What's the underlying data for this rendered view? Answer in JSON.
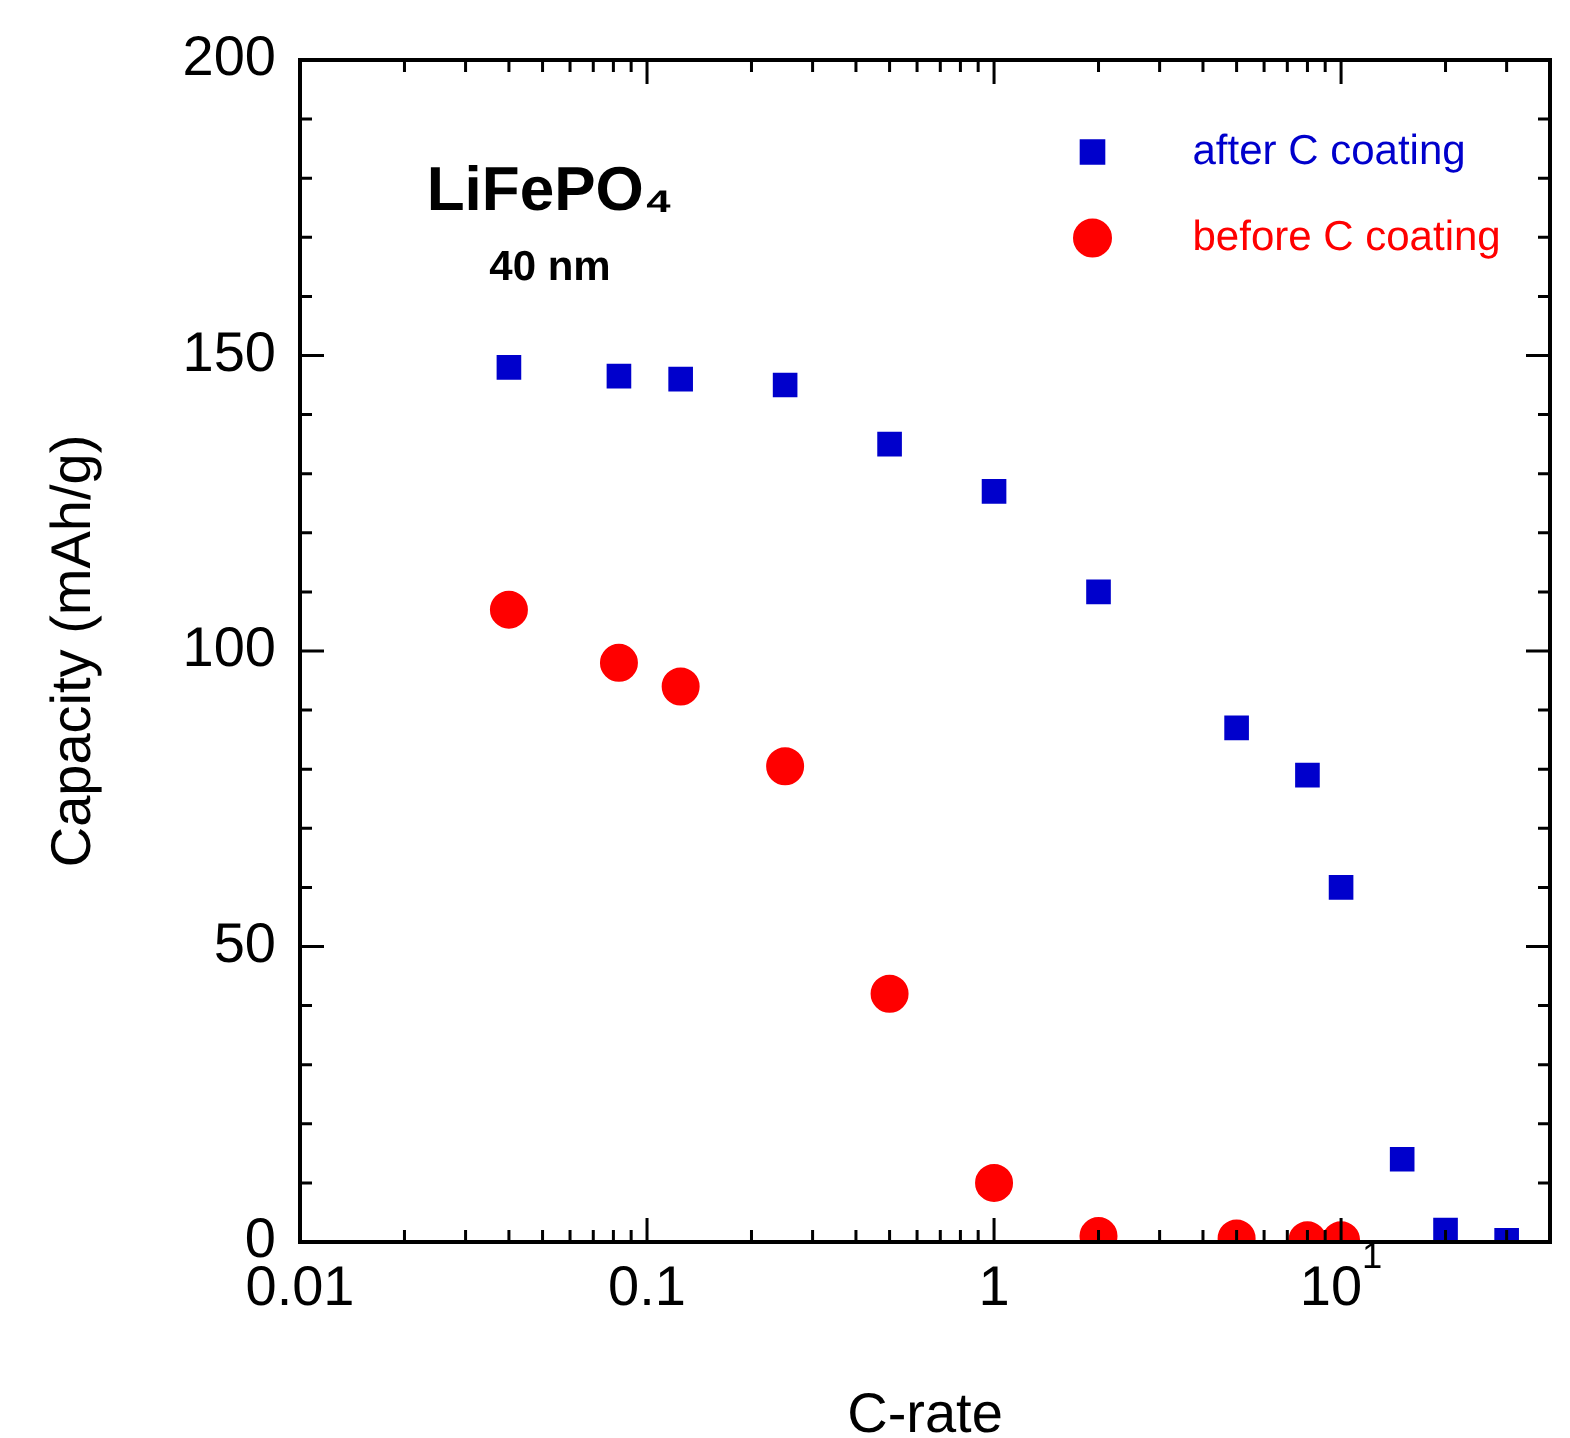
{
  "chart_data": {
    "type": "scatter",
    "title": "LiFePO₄",
    "annotations": [
      "40 nm"
    ],
    "xlabel": "C-rate",
    "ylabel": "Capacity (mAh/g)",
    "log": "x",
    "xlim": [
      0.01,
      40
    ],
    "xticks": [
      0.01,
      {
        "value": 0.02,
        "label": null
      },
      {
        "value": 0.03,
        "label": null
      },
      {
        "value": 0.04,
        "label": null
      },
      {
        "value": 0.05,
        "label": null
      },
      {
        "value": 0.06,
        "label": null
      },
      {
        "value": 0.07,
        "label": null
      },
      {
        "value": 0.08,
        "label": null
      },
      {
        "value": 0.09,
        "label": null
      },
      0.1,
      {
        "value": 0.2,
        "label": null
      },
      {
        "value": 0.3,
        "label": null
      },
      {
        "value": 0.4,
        "label": null
      },
      {
        "value": 0.5,
        "label": null
      },
      {
        "value": 0.6,
        "label": null
      },
      {
        "value": 0.7,
        "label": null
      },
      {
        "value": 0.8,
        "label": null
      },
      {
        "value": 0.9,
        "label": null
      },
      1,
      {
        "value": 2,
        "label": null
      },
      {
        "value": 3,
        "label": null
      },
      {
        "value": 4,
        "label": null
      },
      {
        "value": 5,
        "label": null
      },
      {
        "value": 6,
        "label": null
      },
      {
        "value": 7,
        "label": null
      },
      {
        "value": 8,
        "label": null
      },
      {
        "value": 9,
        "label": null
      },
      {
        "value": 10,
        "label": "10$^{1}$"
      },
      {
        "value": 20,
        "label": null
      },
      {
        "value": 30,
        "label": null
      },
      {
        "value": 40,
        "label": null
      }
    ],
    "ylim": [
      0,
      200
    ],
    "yticks": [
      0,
      {
        "value": 10,
        "label": null
      },
      {
        "value": 20,
        "label": null
      },
      {
        "value": 30,
        "label": null
      },
      {
        "value": 40,
        "label": null
      },
      50,
      {
        "value": 60,
        "label": null
      },
      {
        "value": 70,
        "label": null
      },
      {
        "value": 80,
        "label": null
      },
      {
        "value": 90,
        "label": null
      },
      100,
      {
        "value": 110,
        "label": null
      },
      {
        "value": 120,
        "label": null
      },
      {
        "value": 130,
        "label": null
      },
      {
        "value": 140,
        "label": null
      },
      150,
      {
        "value": 160,
        "label": null
      },
      {
        "value": 170,
        "label": null
      },
      {
        "value": 180,
        "label": null
      },
      {
        "value": 190,
        "label": null
      },
      200
    ],
    "grid": false,
    "legend": "top right",
    "series": [
      {
        "name": "after C coating",
        "color": "#0000cc",
        "marker": "square",
        "x": [
          0.04,
          0.083,
          0.125,
          0.25,
          0.5,
          1,
          2,
          5,
          8,
          10,
          15,
          20,
          30
        ],
        "values": [
          148,
          146.5,
          146,
          145,
          135,
          127,
          110,
          87,
          79,
          60,
          14,
          2,
          0.3
        ]
      },
      {
        "name": "before C coating",
        "color": "#ff0000",
        "marker": "circle",
        "x": [
          0.04,
          0.083,
          0.125,
          0.25,
          0.5,
          1,
          2,
          5,
          8,
          10
        ],
        "values": [
          107,
          98,
          94,
          80.5,
          42,
          10,
          1,
          0.6,
          0.3,
          0.3
        ]
      }
    ]
  }
}
